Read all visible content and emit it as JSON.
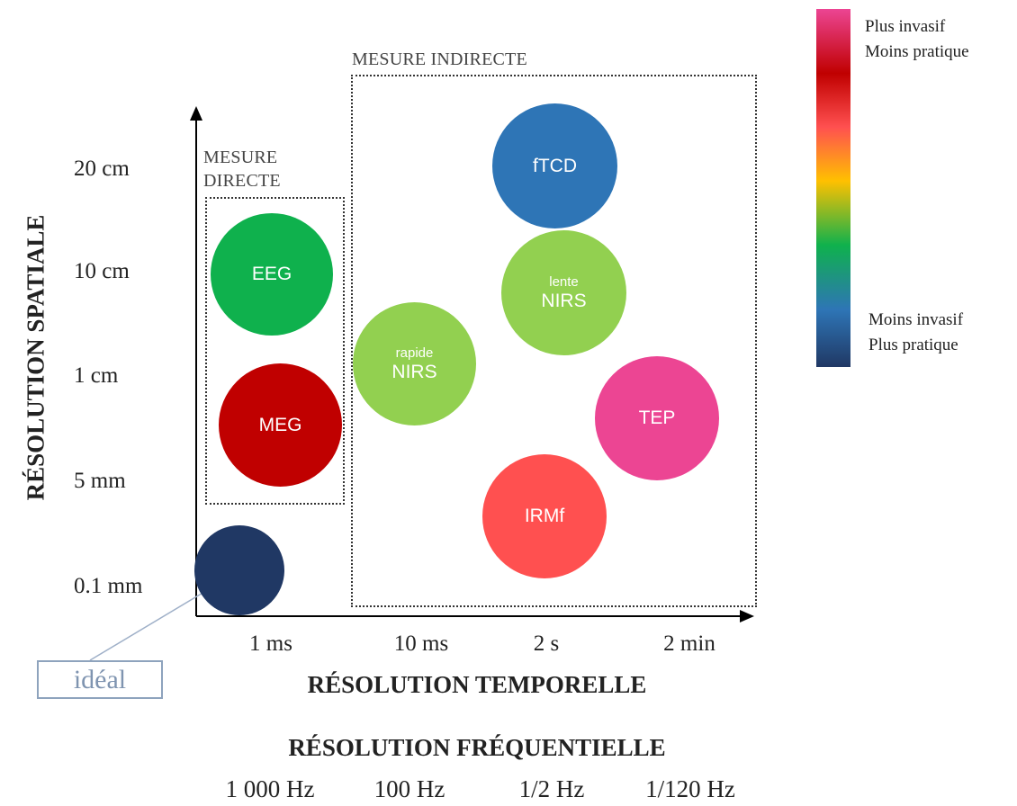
{
  "axes": {
    "y_title": "RÉSOLUTION SPATIALE",
    "x_title": "RÉSOLUTION TEMPORELLE",
    "freq_title": "RÉSOLUTION FRÉQUENTIELLE",
    "y_ticks": [
      "20 cm",
      "10 cm",
      "1 cm",
      "5 mm",
      "0.1 mm"
    ],
    "x_ticks": [
      "1 ms",
      "10 ms",
      "2 s",
      "2 min"
    ],
    "freq_ticks": [
      "1 000 Hz",
      "100 Hz",
      "1/2 Hz",
      "1/120 Hz"
    ]
  },
  "groups": {
    "direct_line1": "MESURE",
    "direct_line2": "DIRECTE",
    "indirect": "MESURE INDIRECTE"
  },
  "bubbles": {
    "eeg": {
      "label": "EEG",
      "color": "#0fb14d"
    },
    "meg": {
      "label": "MEG",
      "color": "#c00000"
    },
    "nirs_fast": {
      "sub": "rapide",
      "label": "NIRS",
      "color": "#92d050"
    },
    "nirs_slow": {
      "sub": "lente",
      "label": "NIRS",
      "color": "#92d050"
    },
    "ftcd": {
      "label": "fTCD",
      "color": "#2e75b6"
    },
    "tep": {
      "label": "TEP",
      "color": "#ec4593"
    },
    "irmf": {
      "label": "IRMf",
      "color": "#ff5050"
    },
    "ideal": {
      "color": "#203864"
    }
  },
  "callout": {
    "label": "idéal"
  },
  "legend": {
    "top_line1": "Plus invasif",
    "top_line2": "Moins pratique",
    "bottom_line1": "Moins invasif",
    "bottom_line2": "Plus pratique",
    "gradient_colors": [
      "#ec4593",
      "#c00000",
      "#ff5050",
      "#ffc000",
      "#0fb14d",
      "#2e75b6",
      "#203864"
    ]
  }
}
